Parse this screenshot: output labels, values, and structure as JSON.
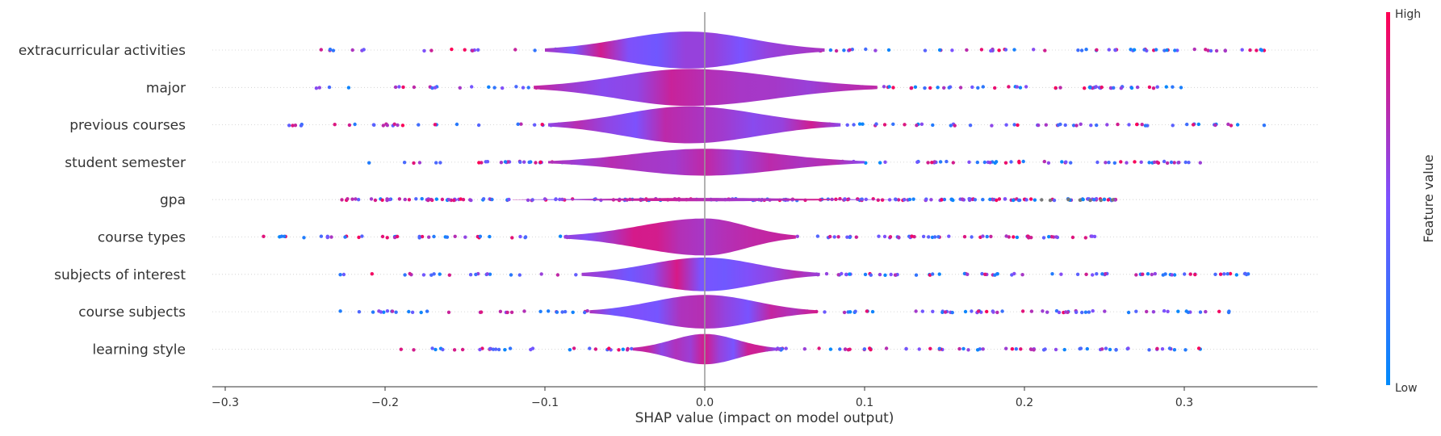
{
  "chart_data": {
    "type": "violin",
    "features": [
      "extracurricular activities",
      "major",
      "previous courses",
      "student semester",
      "gpa",
      "course types",
      "subjects of interest",
      "course subjects",
      "learning style"
    ],
    "xlabel": "SHAP value (impact on model output)",
    "xticks": [
      -0.3,
      -0.2,
      -0.1,
      0.0,
      0.1,
      0.2,
      0.3
    ],
    "xtick_labels": [
      "−0.3",
      "−0.2",
      "−0.1",
      "0.0",
      "0.1",
      "0.2",
      "0.3"
    ],
    "xlim": [
      -0.31,
      0.38
    ],
    "colorbar": {
      "title": "Feature value",
      "high_label": "High",
      "low_label": "Low",
      "low_color": "#008bfb",
      "high_color": "#ff0052"
    },
    "series": [
      {
        "min": -0.24,
        "max": 0.35,
        "peak": -0.01,
        "core_range": [
          -0.1,
          0.075
        ],
        "max_halfwidth_frac": 0.55
      },
      {
        "min": -0.243,
        "max": 0.298,
        "peak": -0.01,
        "core_range": [
          -0.107,
          0.108
        ],
        "max_halfwidth_frac": 0.55
      },
      {
        "min": -0.26,
        "max": 0.35,
        "peak": -0.01,
        "core_range": [
          -0.098,
          0.085
        ],
        "max_halfwidth_frac": 0.55
      },
      {
        "min": -0.21,
        "max": 0.31,
        "peak": 0.0,
        "core_range": [
          -0.098,
          0.1
        ],
        "max_halfwidth_frac": 0.4
      },
      {
        "min": -0.227,
        "max": 0.257,
        "peak": 0.0,
        "core_range": [
          -0.12,
          0.12
        ],
        "max_halfwidth_frac": 0.05
      },
      {
        "min": -0.276,
        "max": 0.244,
        "peak": 0.0,
        "core_range": [
          -0.088,
          0.057
        ],
        "max_halfwidth_frac": 0.55
      },
      {
        "min": -0.228,
        "max": 0.34,
        "peak": 0.0,
        "core_range": [
          -0.077,
          0.072
        ],
        "max_halfwidth_frac": 0.5
      },
      {
        "min": -0.228,
        "max": 0.328,
        "peak": 0.0,
        "core_range": [
          -0.072,
          0.07
        ],
        "max_halfwidth_frac": 0.5
      },
      {
        "min": -0.19,
        "max": 0.31,
        "peak": 0.0,
        "core_range": [
          -0.045,
          0.045
        ],
        "max_halfwidth_frac": 0.45
      }
    ]
  }
}
